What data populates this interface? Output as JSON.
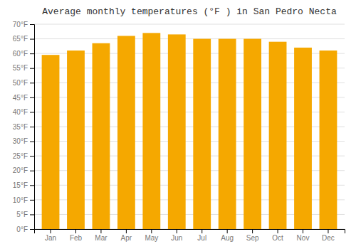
{
  "chart_data": {
    "type": "bar",
    "title": "Average monthly temperatures (°F ) in San Pedro Necta",
    "categories": [
      "Jan",
      "Feb",
      "Mar",
      "Apr",
      "May",
      "Jun",
      "Jul",
      "Aug",
      "Sep",
      "Oct",
      "Nov",
      "Dec"
    ],
    "values": [
      59.5,
      61.0,
      63.5,
      66.0,
      67.0,
      66.5,
      65.0,
      65.0,
      65.0,
      64.0,
      62.0,
      61.0
    ],
    "color": "#F5A800",
    "ylim": [
      0,
      70
    ],
    "yticks": [
      {
        "value": 0,
        "label": "0°F"
      },
      {
        "value": 5,
        "label": "5°F"
      },
      {
        "value": 10,
        "label": "10°F"
      },
      {
        "value": 15,
        "label": "15°F"
      },
      {
        "value": 20,
        "label": "20°F"
      },
      {
        "value": 25,
        "label": "25°F"
      },
      {
        "value": 30,
        "label": "30°F"
      },
      {
        "value": 35,
        "label": "35°F"
      },
      {
        "value": 40,
        "label": "40°F"
      },
      {
        "value": 45,
        "label": "45°F"
      },
      {
        "value": 50,
        "label": "50°F"
      },
      {
        "value": 55,
        "label": "55°F"
      },
      {
        "value": 60,
        "label": "60°F"
      },
      {
        "value": 65,
        "label": "65°F"
      },
      {
        "value": 70,
        "label": "70°F"
      }
    ],
    "grid": true
  }
}
